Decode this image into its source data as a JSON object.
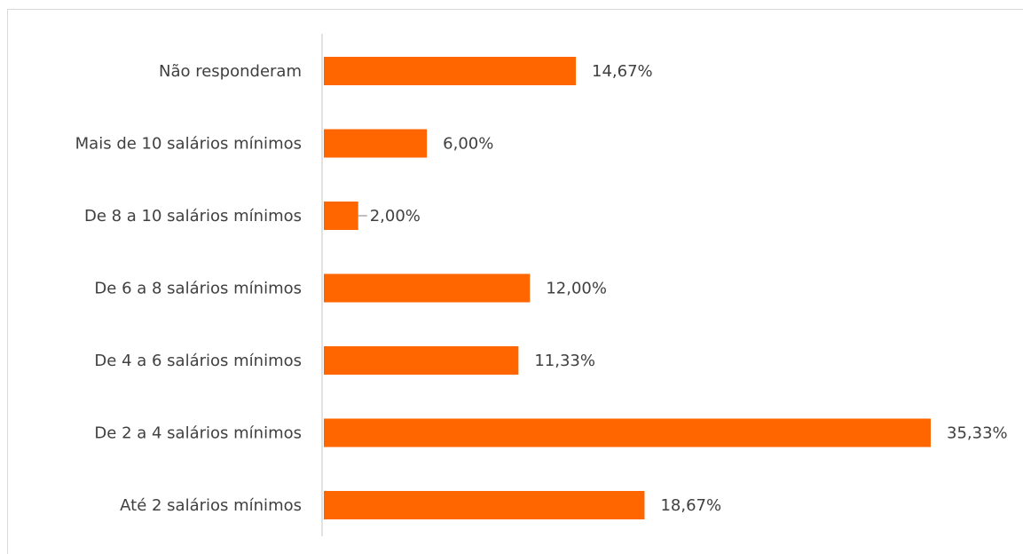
{
  "chart_data": {
    "type": "bar",
    "orientation": "horizontal",
    "categories": [
      "Não responderam",
      "Mais de 10 salários mínimos",
      "De 8 a 10 salários mínimos",
      "De 6 a 8 salários mínimos",
      "De 4 a 6 salários mínimos",
      "De 2 a 4 salários mínimos",
      "Até 2 salários mínimos"
    ],
    "values": [
      14.67,
      6.0,
      2.0,
      12.0,
      11.33,
      35.33,
      18.67
    ],
    "value_labels": [
      "14,67%",
      "6,00%",
      "2,00%",
      "12,00%",
      "11,33%",
      "35,33%",
      "18,67%"
    ],
    "title": "",
    "xlabel": "",
    "ylabel": "",
    "xlim": [
      0,
      35.33
    ],
    "grid": false,
    "legend": "none",
    "bar_color": "#ff6600",
    "axis_color": "#d9d9d9",
    "text_color": "#404040"
  }
}
